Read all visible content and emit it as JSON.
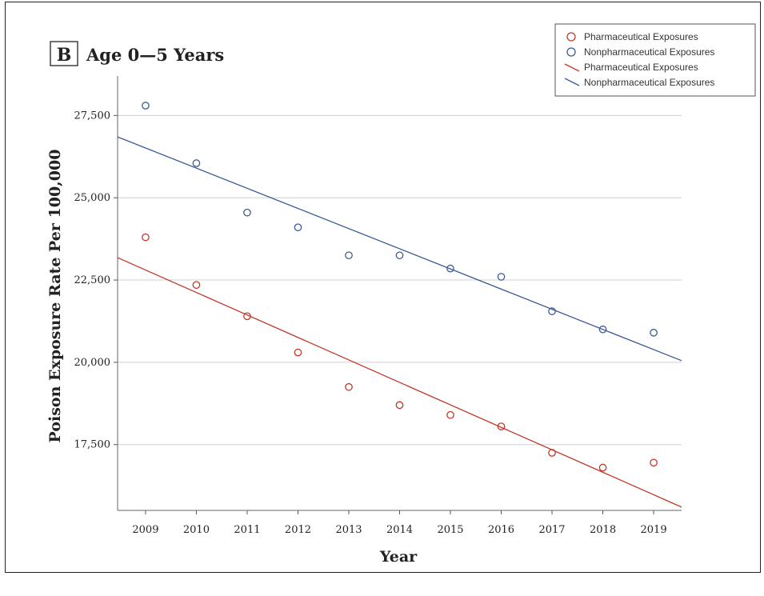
{
  "chart_data": {
    "type": "scatter",
    "panel_letter": "B",
    "title": "Age 0—5 Years",
    "xlabel": "Year",
    "ylabel": "Poison Exposure Rate Per 100,000",
    "x": [
      2009,
      2010,
      2011,
      2012,
      2013,
      2014,
      2015,
      2016,
      2017,
      2018,
      2019
    ],
    "xlim": [
      2008.45,
      2019.55
    ],
    "ylim": [
      15500,
      28700
    ],
    "yticks": [
      17500,
      20000,
      22500,
      25000,
      27500
    ],
    "ytick_labels": [
      "17,500",
      "20,000",
      "22,500",
      "25,000",
      "27,500"
    ],
    "grid": "horizontal",
    "legend_position": "top-right",
    "legend": [
      {
        "label": "Pharmaceutical Exposures",
        "kind": "marker",
        "color": "#c0392b"
      },
      {
        "label": "Nonpharmaceutical Exposures",
        "kind": "marker",
        "color": "#3b5998"
      },
      {
        "label": "Pharmaceutical Exposures",
        "kind": "line",
        "color": "#c0392b"
      },
      {
        "label": "Nonpharmaceutical Exposures",
        "kind": "line",
        "color": "#3b5998"
      }
    ],
    "series": [
      {
        "name": "Pharmaceutical Exposures",
        "color": "#c0392b",
        "values": [
          23800,
          22350,
          21400,
          20300,
          19250,
          18700,
          18400,
          18050,
          17250,
          16800,
          16950
        ],
        "fit": {
          "x": [
            2008.45,
            2019.55
          ],
          "y": [
            23180,
            15600
          ]
        }
      },
      {
        "name": "Nonpharmaceutical Exposures",
        "color": "#3b5998",
        "values": [
          27800,
          26050,
          24550,
          24100,
          23250,
          23250,
          22850,
          22600,
          21550,
          21000,
          20900
        ],
        "fit": {
          "x": [
            2008.45,
            2019.55
          ],
          "y": [
            26850,
            20050
          ]
        }
      }
    ]
  }
}
